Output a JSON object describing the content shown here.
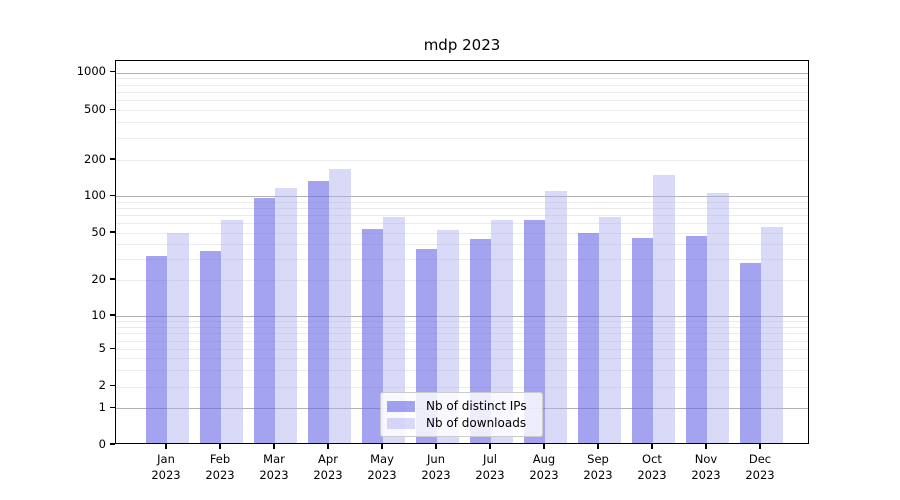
{
  "chart_data": {
    "type": "bar",
    "title": "mdp 2023",
    "categories": [
      "Jan 2023",
      "Feb 2023",
      "Mar 2023",
      "Apr 2023",
      "May 2023",
      "Jun 2023",
      "Jul 2023",
      "Aug 2023",
      "Sep 2023",
      "Oct 2023",
      "Nov 2023",
      "Dec 2023"
    ],
    "series": [
      {
        "name": "Nb of distinct IPs",
        "color": "rgba(102,102,230,0.6)",
        "approx_hex": "#a6a6f0",
        "values": [
          31,
          34,
          93,
          129,
          52,
          35,
          43,
          62,
          48,
          44,
          45,
          27
        ]
      },
      {
        "name": "Nb of downloads",
        "color": "rgba(170,170,240,0.45)",
        "approx_hex": "#d9d9f8",
        "values": [
          48,
          62,
          112,
          163,
          65,
          51,
          62,
          106,
          65,
          146,
          102,
          54
        ]
      }
    ],
    "xlabel": "",
    "ylabel": "",
    "yscale": "symlog",
    "ylim": [
      0,
      1200
    ],
    "ytick_values": [
      1000,
      500,
      200,
      100,
      50,
      20,
      10,
      5,
      2,
      1,
      0
    ],
    "ytick_labels": [
      "1000",
      "500",
      "200",
      "100",
      "50",
      "20",
      "10",
      "5",
      "2",
      "1",
      "0"
    ],
    "grid": "on",
    "grid_major_color": "#b2b2b2",
    "grid_minor_color": "#ebebeb",
    "legend_position": "lower center inside"
  }
}
